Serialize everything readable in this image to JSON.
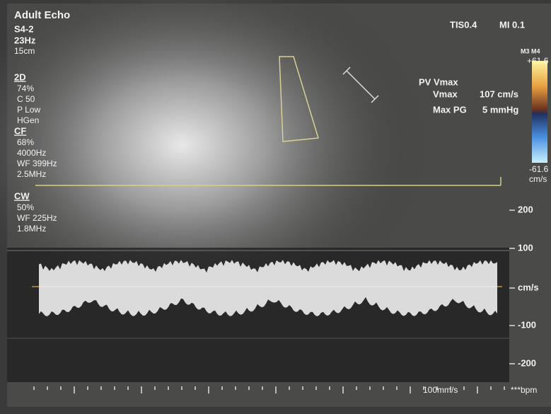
{
  "header": {
    "mode": "Adult Echo",
    "probe": "S4-2",
    "frame_rate": "23Hz",
    "depth": "15cm",
    "tis": "TIS0.4",
    "mi": "MI 0.1"
  },
  "params": [
    {
      "heading": "2D",
      "lines": [
        "74%",
        "C 50",
        "P Low",
        "HGen"
      ]
    },
    {
      "heading": "CF",
      "lines": [
        "68%",
        "4000Hz",
        "WF 399Hz",
        "2.5MHz"
      ]
    },
    {
      "heading": "CW",
      "lines": [
        "50%",
        "WF 225Hz",
        "1.8MHz"
      ]
    }
  ],
  "measurement": {
    "label": "PV Vmax",
    "rows": [
      {
        "name": "Vmax",
        "value": "107 cm/s"
      },
      {
        "name": "Max PG",
        "value": "5 mmHg"
      }
    ]
  },
  "color_bar": {
    "map": "M3 M4",
    "top": "+61.6",
    "bottom": "-61.6",
    "unit": "cm/s"
  },
  "scale": [
    "200",
    "100",
    "cm/s",
    "-100",
    "-200"
  ],
  "footer": {
    "sweep": "100mm/s",
    "rate": "***bpm"
  }
}
